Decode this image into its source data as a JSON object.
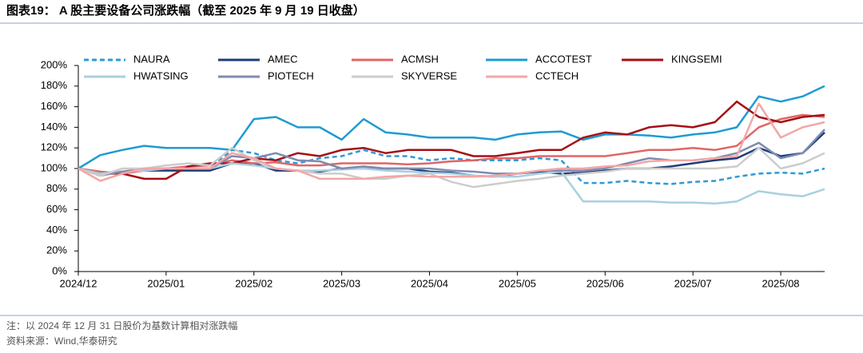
{
  "chart_data": {
    "type": "line",
    "title": "图表19： A 股主要设备公司涨跌幅（截至 2025 年 9 月 19 日收盘）",
    "notes": [
      "注：以 2024 年 12 月 31 日股价为基数计算相对涨跌幅",
      "资料来源：Wind,华泰研究"
    ],
    "categories": [
      "2024/12",
      null,
      null,
      null,
      "2025/01",
      null,
      null,
      null,
      "2025/02",
      null,
      null,
      null,
      "2025/03",
      null,
      null,
      null,
      "2025/04",
      null,
      null,
      null,
      "2025/05",
      null,
      null,
      null,
      "2025/06",
      null,
      null,
      null,
      "2025/07",
      null,
      null,
      null,
      "2025/08",
      null,
      null
    ],
    "ylim": [
      0,
      200
    ],
    "yticks": [
      {
        "value": 0,
        "label": "0%"
      },
      {
        "value": 20,
        "label": "20%"
      },
      {
        "value": 40,
        "label": "40%"
      },
      {
        "value": 60,
        "label": "60%"
      },
      {
        "value": 80,
        "label": "80%"
      },
      {
        "value": 100,
        "label": "100%"
      },
      {
        "value": 120,
        "label": "120%"
      },
      {
        "value": 140,
        "label": "140%"
      },
      {
        "value": 160,
        "label": "160%"
      },
      {
        "value": 180,
        "label": "180%"
      },
      {
        "value": 200,
        "label": "200%"
      }
    ],
    "series": [
      {
        "name": "NAURA",
        "color": "#2e9ad8",
        "dash": true,
        "values": [
          100,
          95,
          97,
          98,
          100,
          100,
          100,
          118,
          115,
          108,
          105,
          110,
          112,
          118,
          112,
          112,
          108,
          110,
          108,
          108,
          108,
          110,
          108,
          86,
          86,
          88,
          86,
          85,
          87,
          88,
          92,
          95,
          96,
          95,
          100
        ]
      },
      {
        "name": "AMEC",
        "color": "#1f3d7a",
        "values": [
          100,
          95,
          96,
          98,
          98,
          98,
          98,
          105,
          105,
          98,
          98,
          97,
          100,
          100,
          100,
          100,
          97,
          96,
          93,
          92,
          95,
          97,
          95,
          96,
          98,
          100,
          100,
          102,
          105,
          108,
          110,
          120,
          112,
          115,
          135
        ]
      },
      {
        "name": "ACMSH",
        "color": "#e06666",
        "values": [
          100,
          97,
          95,
          98,
          100,
          102,
          103,
          108,
          105,
          106,
          103,
          103,
          105,
          105,
          105,
          104,
          105,
          107,
          108,
          110,
          110,
          112,
          112,
          112,
          112,
          115,
          118,
          118,
          120,
          118,
          122,
          140,
          148,
          152,
          150
        ]
      },
      {
        "name": "ACCOTEST",
        "color": "#1f9bd1",
        "values": [
          100,
          113,
          118,
          122,
          120,
          120,
          120,
          118,
          148,
          150,
          140,
          140,
          128,
          148,
          135,
          133,
          130,
          130,
          130,
          128,
          133,
          135,
          136,
          128,
          133,
          133,
          132,
          130,
          133,
          135,
          140,
          170,
          165,
          170,
          180
        ]
      },
      {
        "name": "KINGSEMI",
        "color": "#a50f15",
        "values": [
          100,
          95,
          95,
          90,
          90,
          102,
          105,
          105,
          110,
          108,
          115,
          112,
          118,
          120,
          115,
          118,
          118,
          118,
          112,
          112,
          115,
          118,
          118,
          130,
          135,
          133,
          140,
          142,
          140,
          145,
          165,
          150,
          145,
          150,
          152
        ]
      },
      {
        "name": "HWATSING",
        "color": "#a9cfe0",
        "values": [
          100,
          95,
          97,
          98,
          100,
          100,
          100,
          105,
          103,
          100,
          98,
          98,
          99,
          100,
          98,
          97,
          96,
          95,
          93,
          92,
          92,
          95,
          97,
          68,
          68,
          68,
          68,
          67,
          67,
          66,
          68,
          78,
          75,
          73,
          80
        ]
      },
      {
        "name": "PIOTECH",
        "color": "#7f8bb0",
        "values": [
          100,
          93,
          97,
          100,
          100,
          100,
          100,
          112,
          110,
          115,
          108,
          107,
          100,
          102,
          100,
          100,
          100,
          98,
          97,
          95,
          95,
          98,
          98,
          98,
          100,
          105,
          110,
          108,
          108,
          110,
          115,
          125,
          110,
          115,
          138
        ]
      },
      {
        "name": "SKYVERSE",
        "color": "#cccccc",
        "values": [
          100,
          93,
          100,
          100,
          103,
          105,
          103,
          120,
          108,
          100,
          98,
          95,
          95,
          90,
          90,
          93,
          95,
          87,
          82,
          85,
          88,
          90,
          93,
          95,
          97,
          100,
          100,
          100,
          100,
          100,
          102,
          120,
          100,
          105,
          115
        ]
      },
      {
        "name": "CCTECH",
        "color": "#f4a6a6",
        "values": [
          100,
          88,
          95,
          100,
          100,
          100,
          100,
          115,
          110,
          100,
          98,
          90,
          90,
          90,
          92,
          93,
          92,
          92,
          92,
          93,
          95,
          98,
          100,
          100,
          102,
          103,
          107,
          108,
          108,
          110,
          112,
          163,
          130,
          140,
          145
        ]
      }
    ]
  }
}
